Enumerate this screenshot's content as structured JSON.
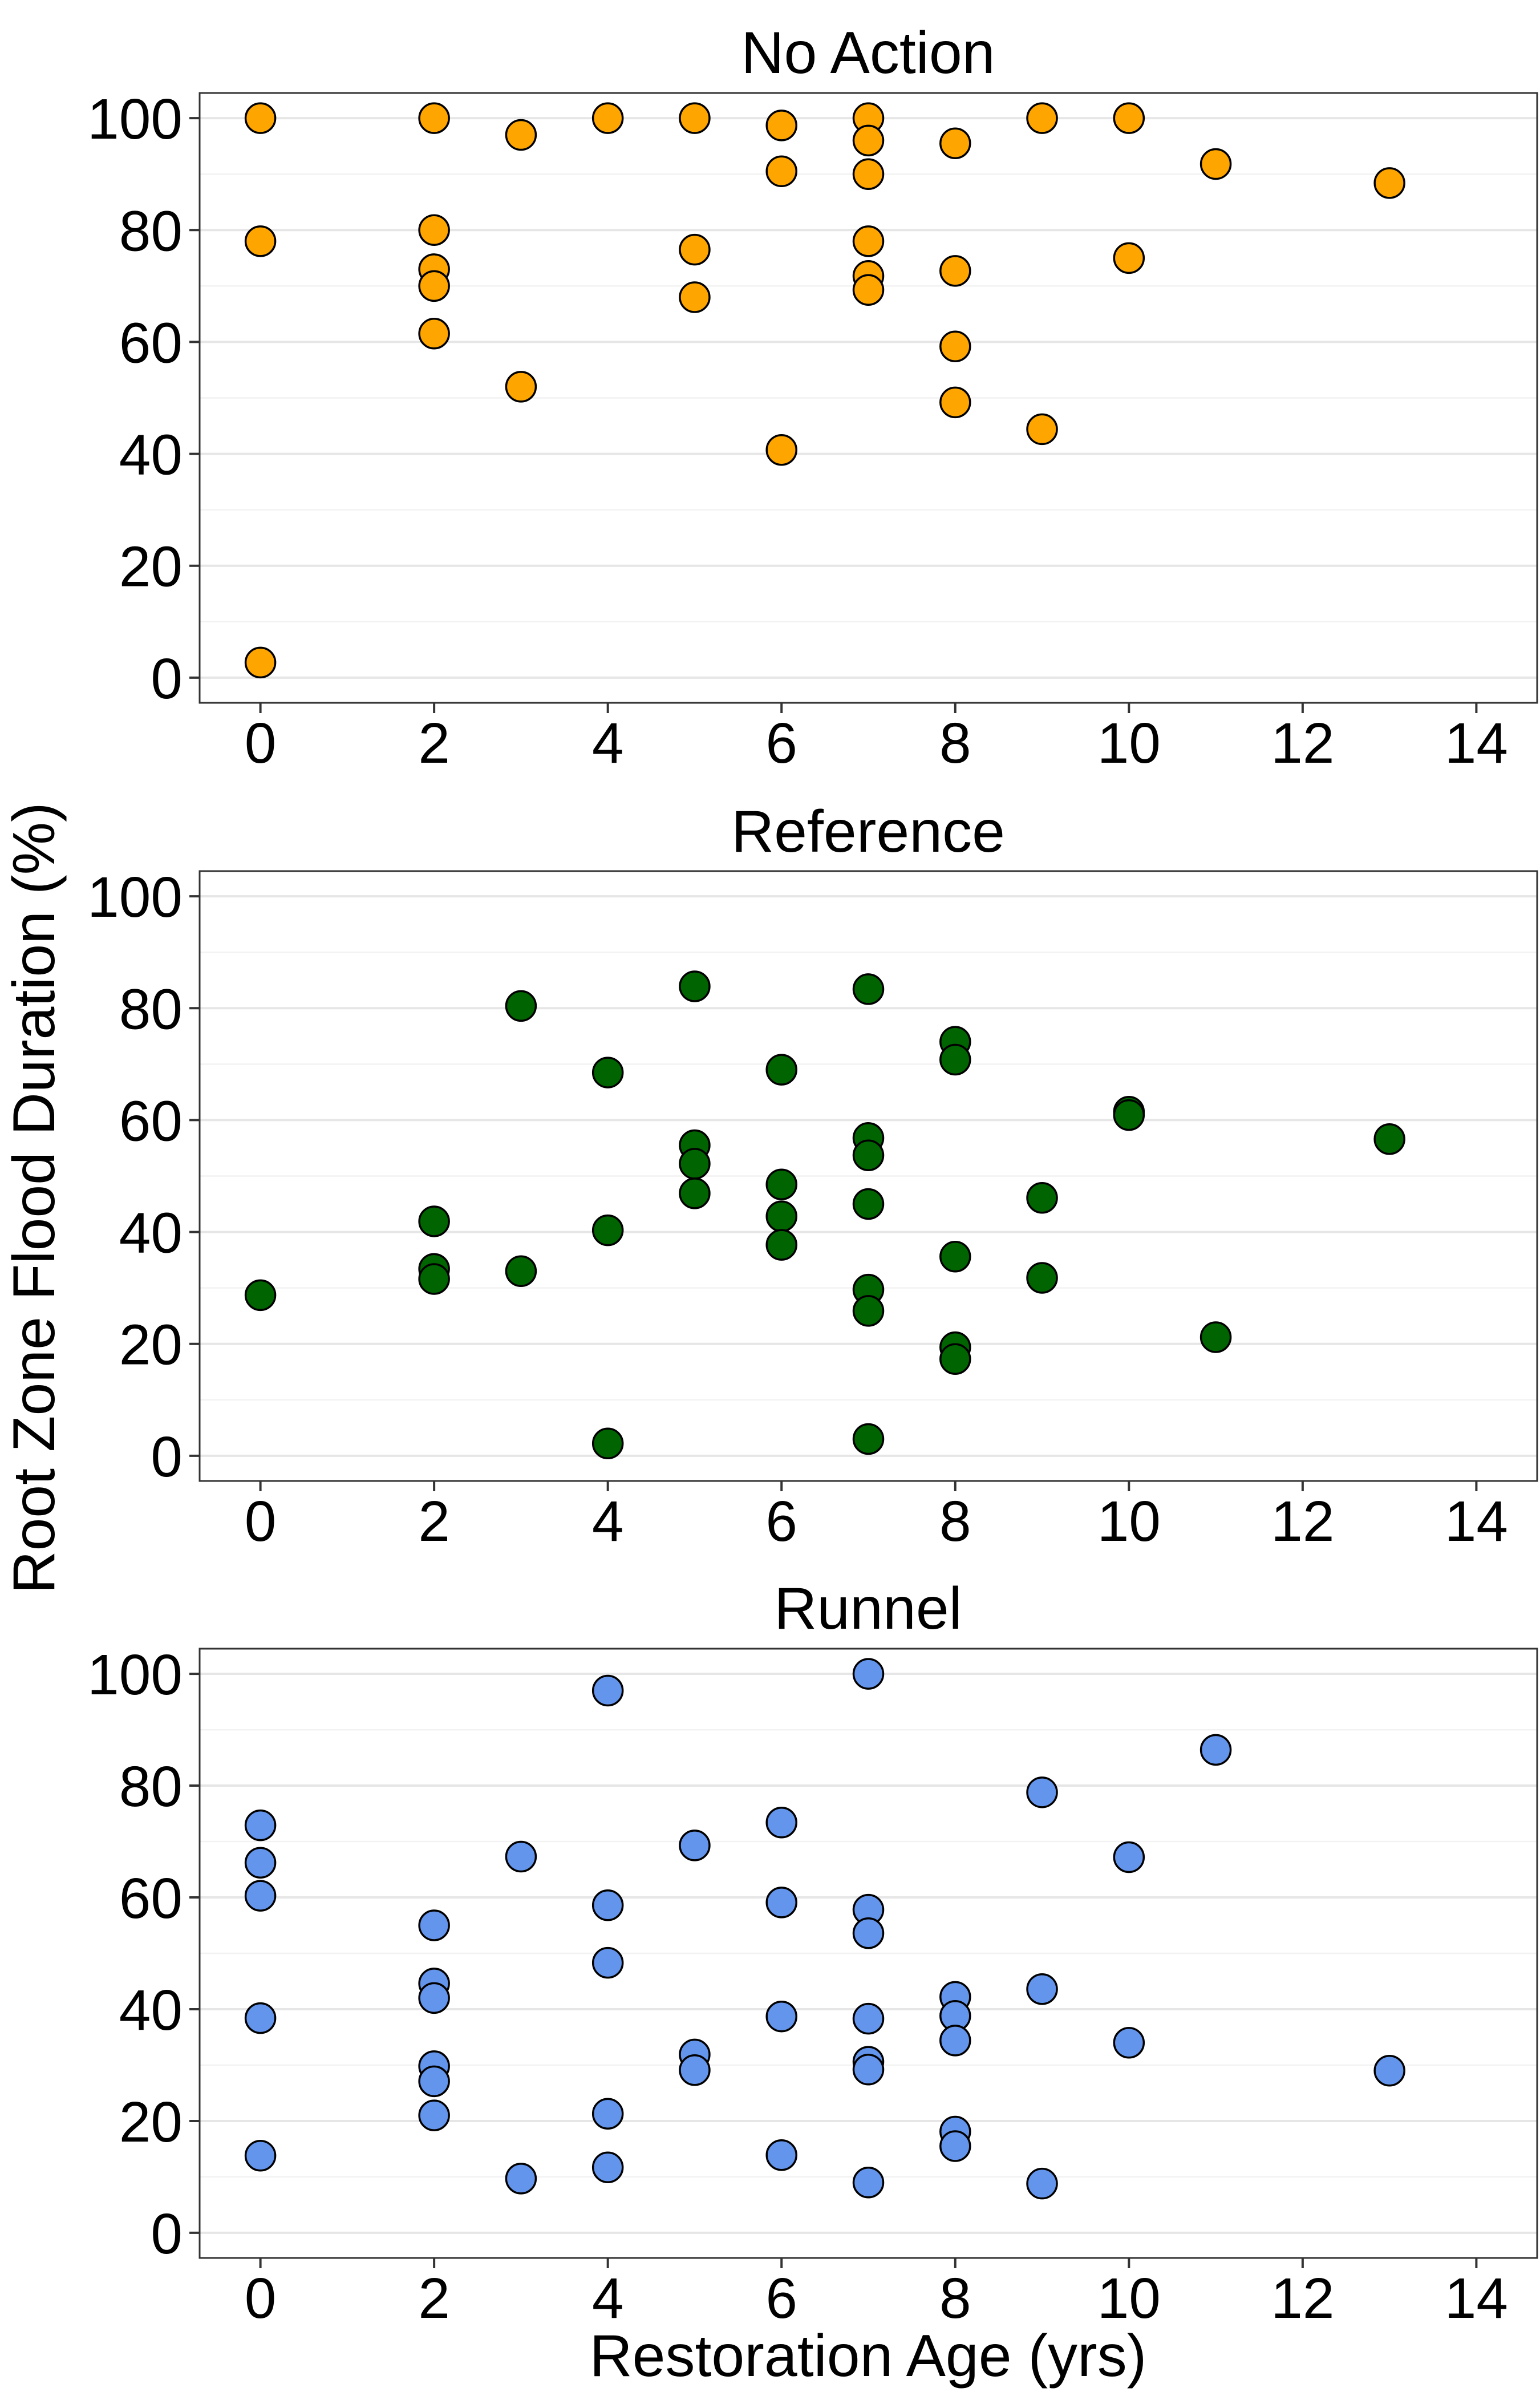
{
  "chart_data": [
    {
      "type": "scatter",
      "title": "No Action",
      "color": "#FFA500",
      "xlim": [
        -0.7,
        14.7
      ],
      "ylim": [
        -4.5,
        104.5
      ],
      "x_ticks": [
        "0",
        "2",
        "4",
        "6",
        "8",
        "10",
        "12",
        "14"
      ],
      "y_ticks": [
        "0",
        "20",
        "40",
        "60",
        "80",
        "100"
      ],
      "grid": true,
      "points": [
        {
          "x": 0,
          "y": 100
        },
        {
          "x": 0,
          "y": 78
        },
        {
          "x": 0,
          "y": 2.7
        },
        {
          "x": 2,
          "y": 100
        },
        {
          "x": 2,
          "y": 80
        },
        {
          "x": 2,
          "y": 73
        },
        {
          "x": 2,
          "y": 70
        },
        {
          "x": 2,
          "y": 61.5
        },
        {
          "x": 3,
          "y": 97
        },
        {
          "x": 3,
          "y": 52
        },
        {
          "x": 4,
          "y": 100
        },
        {
          "x": 5,
          "y": 100
        },
        {
          "x": 5,
          "y": 76.5
        },
        {
          "x": 5,
          "y": 68
        },
        {
          "x": 6,
          "y": 98.7
        },
        {
          "x": 6,
          "y": 90.5
        },
        {
          "x": 6,
          "y": 40.7
        },
        {
          "x": 7,
          "y": 100
        },
        {
          "x": 7,
          "y": 96
        },
        {
          "x": 7,
          "y": 90
        },
        {
          "x": 7,
          "y": 78
        },
        {
          "x": 7,
          "y": 71.8
        },
        {
          "x": 7,
          "y": 69.3
        },
        {
          "x": 8,
          "y": 95.5
        },
        {
          "x": 8,
          "y": 72.7
        },
        {
          "x": 8,
          "y": 59.2
        },
        {
          "x": 8,
          "y": 49.2
        },
        {
          "x": 9,
          "y": 100
        },
        {
          "x": 9,
          "y": 44.4
        },
        {
          "x": 10,
          "y": 100
        },
        {
          "x": 10,
          "y": 75
        },
        {
          "x": 11,
          "y": 91.8
        },
        {
          "x": 13,
          "y": 88.4
        }
      ]
    },
    {
      "type": "scatter",
      "title": "Reference",
      "color": "#006400",
      "xlim": [
        -0.7,
        14.7
      ],
      "ylim": [
        -4.5,
        104.5
      ],
      "x_ticks": [
        "0",
        "2",
        "4",
        "6",
        "8",
        "10",
        "12",
        "14"
      ],
      "y_ticks": [
        "0",
        "20",
        "40",
        "60",
        "80",
        "100"
      ],
      "grid": true,
      "points": [
        {
          "x": 0,
          "y": 28.7
        },
        {
          "x": 2,
          "y": 41.9
        },
        {
          "x": 2,
          "y": 33.4
        },
        {
          "x": 2,
          "y": 31.6
        },
        {
          "x": 3,
          "y": 80.4
        },
        {
          "x": 3,
          "y": 33
        },
        {
          "x": 4,
          "y": 68.5
        },
        {
          "x": 4,
          "y": 40.3
        },
        {
          "x": 4,
          "y": 2.2
        },
        {
          "x": 5,
          "y": 83.9
        },
        {
          "x": 5,
          "y": 55.5
        },
        {
          "x": 5,
          "y": 52.2
        },
        {
          "x": 5,
          "y": 46.9
        },
        {
          "x": 6,
          "y": 69
        },
        {
          "x": 6,
          "y": 48.5
        },
        {
          "x": 6,
          "y": 42.8
        },
        {
          "x": 6,
          "y": 37.7
        },
        {
          "x": 7,
          "y": 83.4
        },
        {
          "x": 7,
          "y": 56.8
        },
        {
          "x": 7,
          "y": 53.7
        },
        {
          "x": 7,
          "y": 45
        },
        {
          "x": 7,
          "y": 29.7
        },
        {
          "x": 7,
          "y": 25.9
        },
        {
          "x": 7,
          "y": 3
        },
        {
          "x": 8,
          "y": 74
        },
        {
          "x": 8,
          "y": 70.8
        },
        {
          "x": 8,
          "y": 35.6
        },
        {
          "x": 8,
          "y": 19.4
        },
        {
          "x": 8,
          "y": 17.3
        },
        {
          "x": 9,
          "y": 46.1
        },
        {
          "x": 9,
          "y": 31.8
        },
        {
          "x": 10,
          "y": 61.5
        },
        {
          "x": 10,
          "y": 60.9
        },
        {
          "x": 11,
          "y": 21.2
        },
        {
          "x": 13,
          "y": 56.6
        }
      ]
    },
    {
      "type": "scatter",
      "title": "Runnel",
      "color": "#6495ED",
      "xlim": [
        -0.7,
        14.7
      ],
      "ylim": [
        -4.5,
        104.5
      ],
      "x_ticks": [
        "0",
        "2",
        "4",
        "6",
        "8",
        "10",
        "12",
        "14"
      ],
      "y_ticks": [
        "0",
        "20",
        "40",
        "60",
        "80",
        "100"
      ],
      "grid": true,
      "points": [
        {
          "x": 0,
          "y": 72.9
        },
        {
          "x": 0,
          "y": 66.2
        },
        {
          "x": 0,
          "y": 60.3
        },
        {
          "x": 0,
          "y": 38.4
        },
        {
          "x": 0,
          "y": 13.8
        },
        {
          "x": 2,
          "y": 55
        },
        {
          "x": 2,
          "y": 44.6
        },
        {
          "x": 2,
          "y": 42
        },
        {
          "x": 2,
          "y": 29.8
        },
        {
          "x": 2,
          "y": 27.1
        },
        {
          "x": 2,
          "y": 21
        },
        {
          "x": 3,
          "y": 67.3
        },
        {
          "x": 3,
          "y": 9.7
        },
        {
          "x": 4,
          "y": 97
        },
        {
          "x": 4,
          "y": 58.6
        },
        {
          "x": 4,
          "y": 48.3
        },
        {
          "x": 4,
          "y": 21.3
        },
        {
          "x": 4,
          "y": 11.7
        },
        {
          "x": 5,
          "y": 69.3
        },
        {
          "x": 5,
          "y": 31.9
        },
        {
          "x": 5,
          "y": 29.1
        },
        {
          "x": 6,
          "y": 73.4
        },
        {
          "x": 6,
          "y": 59.1
        },
        {
          "x": 6,
          "y": 38.7
        },
        {
          "x": 6,
          "y": 13.9
        },
        {
          "x": 7,
          "y": 100
        },
        {
          "x": 7,
          "y": 57.8
        },
        {
          "x": 7,
          "y": 53.6
        },
        {
          "x": 7,
          "y": 38.3
        },
        {
          "x": 7,
          "y": 30.6
        },
        {
          "x": 7,
          "y": 29.2
        },
        {
          "x": 7,
          "y": 9
        },
        {
          "x": 8,
          "y": 42.2
        },
        {
          "x": 8,
          "y": 38.8
        },
        {
          "x": 8,
          "y": 34.4
        },
        {
          "x": 8,
          "y": 18.1
        },
        {
          "x": 8,
          "y": 15.5
        },
        {
          "x": 9,
          "y": 78.8
        },
        {
          "x": 9,
          "y": 43.6
        },
        {
          "x": 9,
          "y": 8.8
        },
        {
          "x": 10,
          "y": 67.2
        },
        {
          "x": 10,
          "y": 34
        },
        {
          "x": 11,
          "y": 86.4
        },
        {
          "x": 13,
          "y": 29
        }
      ]
    }
  ],
  "xlabel": "Restoration Age (yrs)",
  "ylabel": "Root Zone Flood Duration (%)"
}
